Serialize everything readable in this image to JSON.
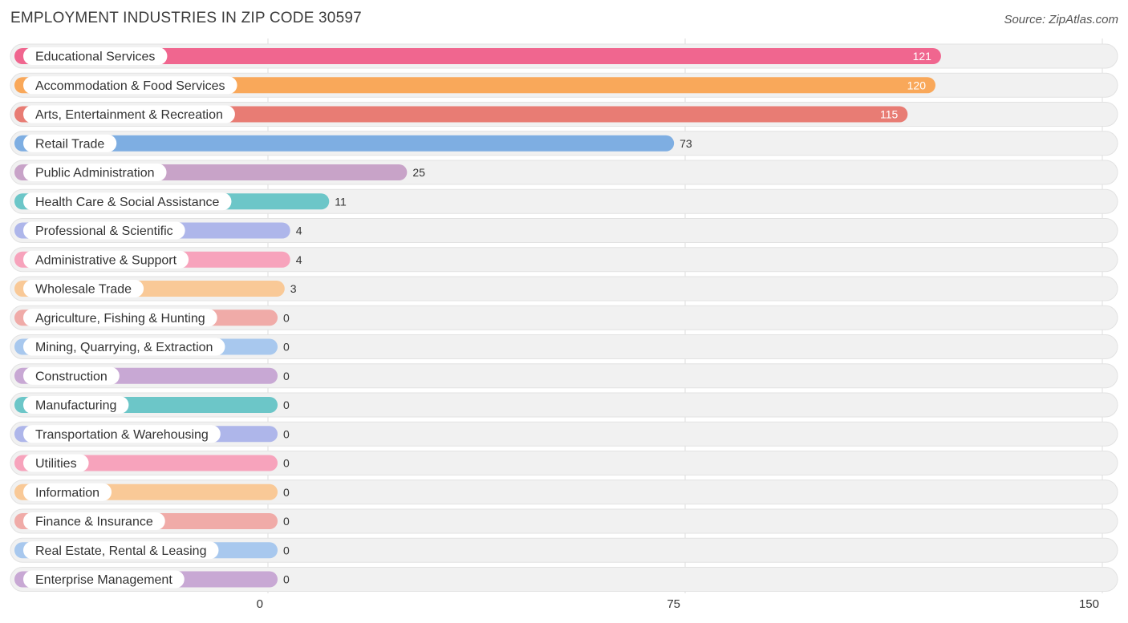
{
  "chart_data": {
    "type": "bar",
    "orientation": "horizontal",
    "title": "EMPLOYMENT INDUSTRIES IN ZIP CODE 30597",
    "source": "Source: ZipAtlas.com",
    "xlim": [
      0,
      150
    ],
    "ticks": [
      0,
      75,
      150
    ],
    "grid": true,
    "categories": [
      "Educational Services",
      "Accommodation & Food Services",
      "Arts, Entertainment & Recreation",
      "Retail Trade",
      "Public Administration",
      "Health Care & Social Assistance",
      "Professional & Scientific",
      "Administrative & Support",
      "Wholesale Trade",
      "Agriculture, Fishing & Hunting",
      "Mining, Quarrying, & Extraction",
      "Construction",
      "Manufacturing",
      "Transportation & Warehousing",
      "Utilities",
      "Information",
      "Finance & Insurance",
      "Real Estate, Rental & Leasing",
      "Enterprise Management"
    ],
    "values": [
      121,
      120,
      115,
      73,
      25,
      11,
      4,
      4,
      3,
      0,
      0,
      0,
      0,
      0,
      0,
      0,
      0,
      0,
      0
    ],
    "colors": [
      "#f0668f",
      "#f9a85a",
      "#e87c74",
      "#7eaee2",
      "#c8a3c8",
      "#6cc6c8",
      "#aeb6ea",
      "#f7a3bc",
      "#f9c997",
      "#f0aba8",
      "#a8c8ee",
      "#c8a8d4",
      "#6cc6c8",
      "#aeb6ea",
      "#f7a3bc",
      "#f9c997",
      "#f0aba8",
      "#a8c8ee",
      "#c8a8d4"
    ]
  }
}
